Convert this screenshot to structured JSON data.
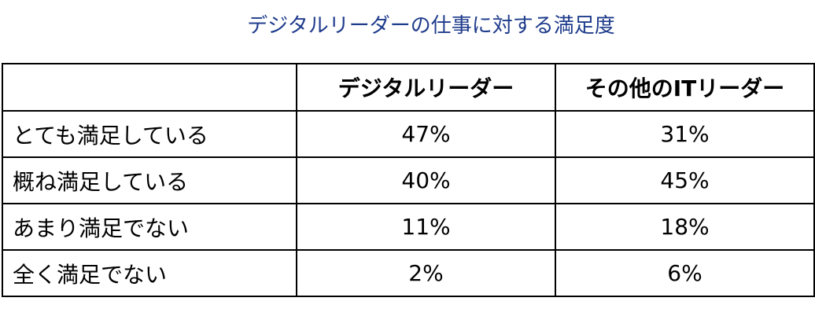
{
  "title": "デジタルリーダーの仕事に対する満足度",
  "table": {
    "header": [
      "",
      "デジタルリーダー",
      "その他のITリーダー"
    ],
    "rows": [
      [
        "とても満足している",
        "47%",
        "31%"
      ],
      [
        "概ね満足している",
        "40%",
        "45%"
      ],
      [
        "あまり満足でない",
        "11%",
        "18%"
      ],
      [
        "全く満足でない",
        "2%",
        "6%"
      ]
    ]
  }
}
